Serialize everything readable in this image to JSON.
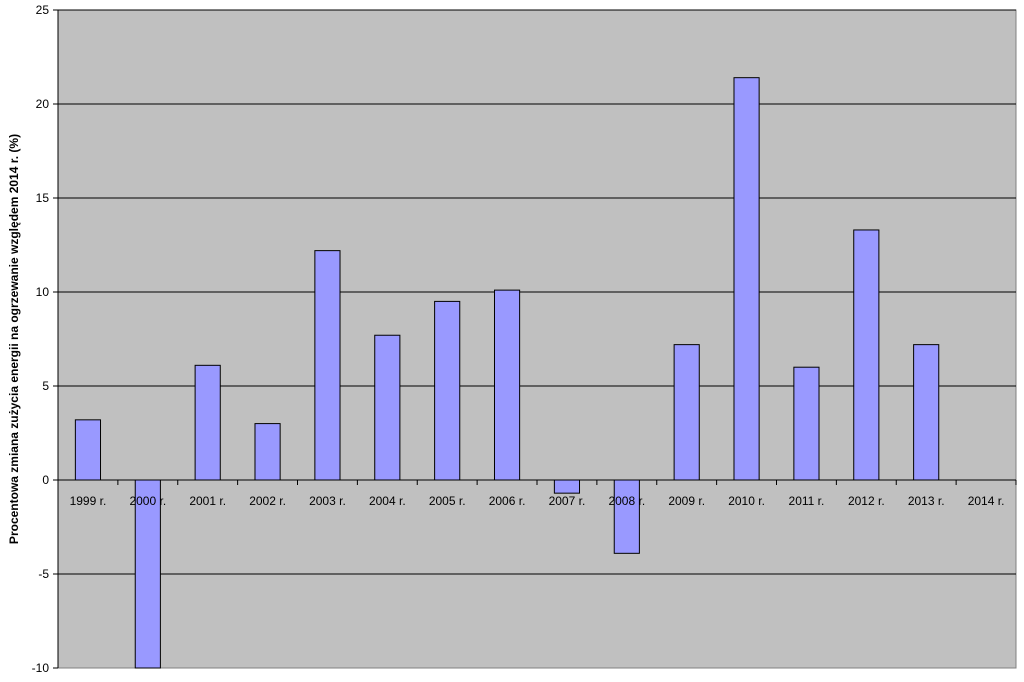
{
  "chart_data": {
    "type": "bar",
    "title": "",
    "xlabel": "",
    "ylabel": "Procentowa zmiana zużycia energii na ogrzewanie względem 2014 r. (%)",
    "categories": [
      "1999 r.",
      "2000 r.",
      "2001 r.",
      "2002 r.",
      "2003 r.",
      "2004 r.",
      "2005 r.",
      "2006 r.",
      "2007 r.",
      "2008 r.",
      "2009 r.",
      "2010 r.",
      "2011 r.",
      "2012 r.",
      "2013 r.",
      "2014 r."
    ],
    "values": [
      3.2,
      -10.0,
      6.1,
      3.0,
      12.2,
      7.7,
      9.5,
      10.1,
      -0.7,
      -3.9,
      7.2,
      21.4,
      6.0,
      13.3,
      7.2,
      0
    ],
    "ylim": [
      -10,
      25
    ],
    "yticks": [
      -10,
      -5,
      0,
      5,
      10,
      15,
      20,
      25
    ],
    "grid": true,
    "colors": {
      "plot_background": "#c0c0c0",
      "bar_fill": "#9999ff",
      "bar_stroke": "#000000",
      "grid": "#000000"
    }
  }
}
